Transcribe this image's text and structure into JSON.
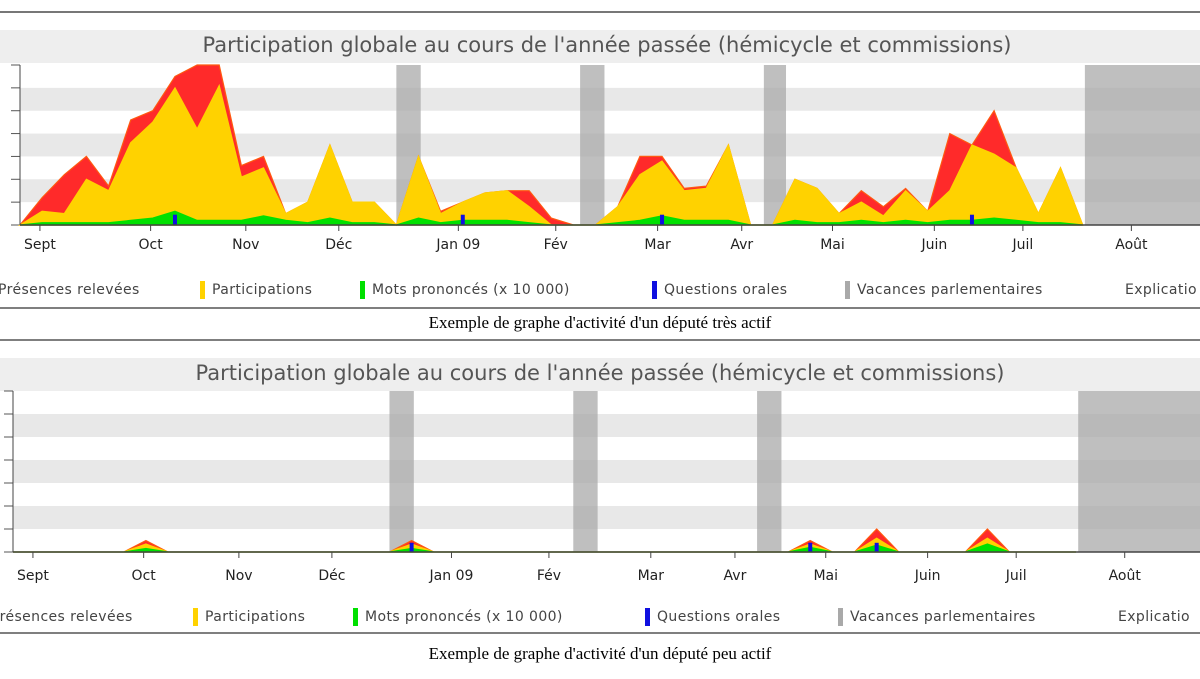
{
  "chart_data": [
    {
      "type": "area",
      "title": "Participation globale au cours de l'année passée (hémicycle et commissions)",
      "caption": "Exemple de graphe d'activité d'un député très actif",
      "legend_extra": "Explicatio",
      "x": [
        0,
        1,
        2,
        3,
        4,
        5,
        6,
        7,
        8,
        9,
        10,
        11,
        12,
        13,
        14,
        15,
        16,
        17,
        18,
        19,
        20,
        21,
        22,
        23,
        24,
        25,
        26,
        27,
        28,
        29,
        30,
        31,
        32,
        33,
        34,
        35,
        36,
        37,
        38,
        39,
        40,
        41,
        42,
        43,
        44,
        45,
        46,
        47,
        48
      ],
      "xlim": [
        0,
        53.3
      ],
      "xticks": [
        {
          "value": 0.9,
          "label": "Sept"
        },
        {
          "value": 5.9,
          "label": "Oct"
        },
        {
          "value": 10.2,
          "label": "Nov"
        },
        {
          "value": 14.4,
          "label": "Déc"
        },
        {
          "value": 19.8,
          "label": "Jan 09"
        },
        {
          "value": 24.2,
          "label": "Fév"
        },
        {
          "value": 28.8,
          "label": "Mar"
        },
        {
          "value": 32.6,
          "label": "Avr"
        },
        {
          "value": 36.7,
          "label": "Mai"
        },
        {
          "value": 41.3,
          "label": "Juin"
        },
        {
          "value": 45.3,
          "label": "Juil"
        },
        {
          "value": 50.2,
          "label": "Août"
        }
      ],
      "ylim": [
        0,
        7
      ],
      "yticks": [
        0,
        1,
        2,
        3,
        4,
        5,
        6,
        7
      ],
      "shaded": {
        "name": "Vacances parlementaires",
        "color": "#a9a9a9",
        "ranges": [
          [
            17.0,
            18.1
          ],
          [
            25.3,
            26.4
          ],
          [
            33.6,
            34.6
          ],
          [
            48.1,
            53.3
          ]
        ]
      },
      "series": [
        {
          "name": "Présences relevées",
          "color": "#ff2a2a",
          "values": [
            0,
            1.2,
            2.2,
            3.0,
            1.7,
            4.6,
            5.0,
            6.5,
            7,
            7,
            2.6,
            3.0,
            0.5,
            1.0,
            3.5,
            1.0,
            1.0,
            0,
            3.0,
            0.6,
            1.0,
            1.4,
            1.5,
            1.5,
            0.3,
            0,
            0,
            0.8,
            3.0,
            3.0,
            1.6,
            1.7,
            3.5,
            0,
            0,
            2.0,
            1.6,
            0.5,
            1.5,
            0.8,
            1.6,
            0.6,
            4.0,
            3.5,
            5.0,
            2.5,
            0.5,
            2.5,
            0
          ]
        },
        {
          "name": "Participations",
          "color": "#ffd200",
          "values": [
            0,
            0.6,
            0.5,
            2.0,
            1.5,
            3.6,
            4.5,
            6.0,
            4.2,
            6.1,
            2.1,
            2.5,
            0.5,
            1.0,
            3.5,
            1.0,
            1.0,
            0,
            3.0,
            0.5,
            1.0,
            1.4,
            1.5,
            0.8,
            0,
            0,
            0,
            0.8,
            2.2,
            2.8,
            1.5,
            1.6,
            3.5,
            0,
            0,
            2.0,
            1.6,
            0.5,
            1.0,
            0.4,
            1.5,
            0.6,
            1.5,
            3.5,
            3.1,
            2.5,
            0.5,
            2.5,
            0
          ]
        },
        {
          "name": "Mots prononcés (x 10 000)",
          "color": "#00e000",
          "values": [
            0,
            0.1,
            0.1,
            0.1,
            0.1,
            0.2,
            0.3,
            0.6,
            0.2,
            0.2,
            0.2,
            0.4,
            0.2,
            0.1,
            0.3,
            0.1,
            0.1,
            0,
            0.3,
            0.1,
            0.2,
            0.2,
            0.2,
            0.1,
            0,
            0,
            0,
            0.1,
            0.2,
            0.4,
            0.2,
            0.2,
            0.2,
            0,
            0,
            0.2,
            0.1,
            0.1,
            0.2,
            0.1,
            0.2,
            0.1,
            0.2,
            0.2,
            0.3,
            0.2,
            0.1,
            0.1,
            0
          ]
        },
        {
          "name": "Questions orales",
          "color": "#1010e0",
          "style": "bar",
          "values": [
            null,
            null,
            null,
            null,
            null,
            null,
            null,
            0.45,
            null,
            null,
            null,
            null,
            null,
            null,
            null,
            null,
            null,
            null,
            null,
            null,
            0.45,
            null,
            null,
            null,
            null,
            null,
            null,
            null,
            null,
            0.45,
            null,
            null,
            null,
            null,
            null,
            null,
            null,
            null,
            null,
            null,
            null,
            null,
            null,
            0.45,
            null,
            null,
            null,
            null,
            null
          ]
        }
      ]
    },
    {
      "type": "area",
      "title": "Participation globale au cours de l'année passée (hémicycle et commissions)",
      "caption": "Exemple de graphe d'activité d'un député peu actif",
      "legend_extra": "Explicatio",
      "x": [
        0,
        1,
        2,
        3,
        4,
        5,
        6,
        7,
        8,
        9,
        10,
        11,
        12,
        13,
        14,
        15,
        16,
        17,
        18,
        19,
        20,
        21,
        22,
        23,
        24,
        25,
        26,
        27,
        28,
        29,
        30,
        31,
        32,
        33,
        34,
        35,
        36,
        37,
        38,
        39,
        40,
        41,
        42,
        43,
        44,
        45,
        46,
        47,
        48
      ],
      "xlim": [
        0,
        53.6
      ],
      "xticks": [
        {
          "value": 0.9,
          "label": "Sept"
        },
        {
          "value": 5.9,
          "label": "Oct"
        },
        {
          "value": 10.2,
          "label": "Nov"
        },
        {
          "value": 14.4,
          "label": "Déc"
        },
        {
          "value": 19.8,
          "label": "Jan 09"
        },
        {
          "value": 24.2,
          "label": "Fév"
        },
        {
          "value": 28.8,
          "label": "Mar"
        },
        {
          "value": 32.6,
          "label": "Avr"
        },
        {
          "value": 36.7,
          "label": "Mai"
        },
        {
          "value": 41.3,
          "label": "Juin"
        },
        {
          "value": 45.3,
          "label": "Juil"
        },
        {
          "value": 50.2,
          "label": "Août"
        }
      ],
      "ylim": [
        0,
        7
      ],
      "yticks": [
        0,
        1,
        2,
        3,
        4,
        5,
        6,
        7
      ],
      "shaded": {
        "name": "Vacances parlementaires",
        "color": "#a9a9a9",
        "ranges": [
          [
            17.0,
            18.1
          ],
          [
            25.3,
            26.4
          ],
          [
            33.6,
            34.7
          ],
          [
            48.1,
            53.6
          ]
        ]
      },
      "series": [
        {
          "name": "Présences relevées",
          "color": "#ff2a2a",
          "values": [
            0,
            0,
            0,
            0,
            0,
            0,
            0.5,
            0,
            0,
            0,
            0,
            0,
            0,
            0,
            0,
            0,
            0,
            0,
            0.5,
            0,
            0,
            0,
            0,
            0,
            0,
            0,
            0,
            0,
            0,
            0,
            0,
            0,
            0,
            0,
            0,
            0,
            0.5,
            0,
            0,
            1.0,
            0,
            0,
            0,
            0,
            1.0,
            0,
            0,
            0,
            0
          ]
        },
        {
          "name": "Participations",
          "color": "#ffd200",
          "values": [
            0,
            0,
            0,
            0,
            0,
            0,
            0.35,
            0,
            0,
            0,
            0,
            0,
            0,
            0,
            0,
            0,
            0,
            0,
            0.35,
            0,
            0,
            0,
            0,
            0,
            0,
            0,
            0,
            0,
            0,
            0,
            0,
            0,
            0,
            0,
            0,
            0,
            0.35,
            0,
            0,
            0.6,
            0,
            0,
            0,
            0,
            0.6,
            0,
            0,
            0,
            0
          ]
        },
        {
          "name": "Mots prononcés (x 10 000)",
          "color": "#00e000",
          "values": [
            0,
            0,
            0,
            0,
            0,
            0,
            0.15,
            0,
            0,
            0,
            0,
            0,
            0,
            0,
            0,
            0,
            0,
            0,
            0.15,
            0,
            0,
            0,
            0,
            0,
            0,
            0,
            0,
            0,
            0,
            0,
            0,
            0,
            0,
            0,
            0,
            0,
            0.2,
            0,
            0,
            0.3,
            0,
            0,
            0,
            0,
            0.35,
            0,
            0,
            0,
            0
          ]
        },
        {
          "name": "Questions orales",
          "color": "#1010e0",
          "style": "bar",
          "values": [
            null,
            null,
            null,
            null,
            null,
            null,
            null,
            null,
            null,
            null,
            null,
            null,
            null,
            null,
            null,
            null,
            null,
            null,
            0.4,
            null,
            null,
            null,
            null,
            null,
            null,
            null,
            null,
            null,
            null,
            null,
            null,
            null,
            null,
            null,
            null,
            null,
            0.4,
            null,
            null,
            0.4,
            null,
            null,
            null,
            null,
            null,
            null,
            null,
            null,
            null
          ]
        }
      ]
    }
  ]
}
